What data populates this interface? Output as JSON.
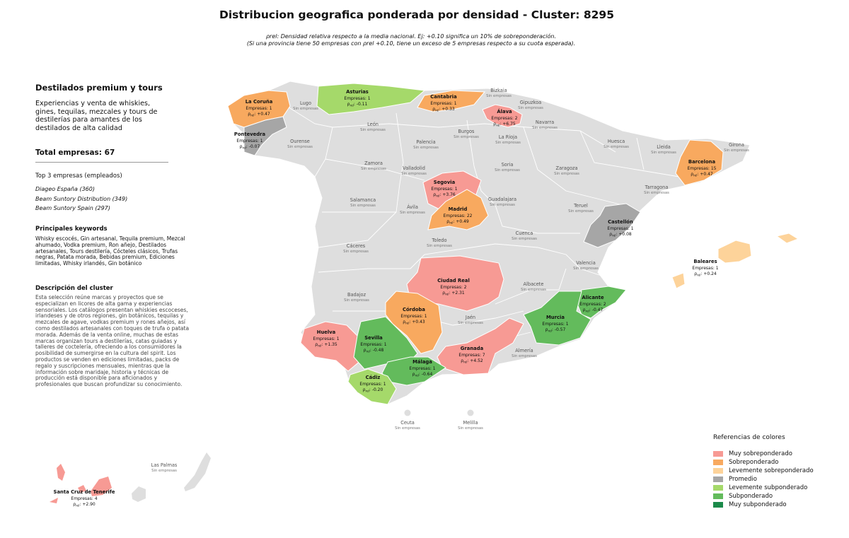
{
  "title": "Distribucion geografica ponderada por densidad - Cluster: 8295",
  "subtitle_line1": "ρrel: Densidad relativa respecto a la media nacional. Ej: +0.10 significa un 10% de sobreponderación.",
  "subtitle_line2": "(Si una provincia tiene 50 empresas con ρrel +0.10, tiene un exceso de 5 empresas respecto a su cuota esperada).",
  "panel": {
    "category_title": "Destilados premium y tours",
    "category_description": "Experiencias y venta de whiskies, gines, tequilas, mezcales y tours de destilerías para amantes de los destilados de alta calidad",
    "total_label": "Total empresas: 67",
    "top_heading": "Top 3 empresas (empleados)",
    "top_companies": [
      "Diageo España (360)",
      "Beam Suntory Distribution (349)",
      "Beam Suntory Spain (297)"
    ],
    "keywords_heading": "Principales keywords",
    "keywords_text": "Whisky escocés, Gin artesanal, Tequila premium, Mezcal ahumado, Vodka premium, Ron añejo, Destilados artesanales, Tours destilería, Cócteles clásicos, Trufas negras, Patata morada, Bebidas premium, Ediciones limitadas, Whisky irlandés, Gin botánico",
    "description_heading": "Descripción del cluster",
    "description_text": "Esta selección reúne marcas y proyectos que se especializan en licores de alta gama y experiencias sensoriales. Los catálogos presentan whiskies escoceses, irlandeses y de otros regiones, gin botánicos, tequilas y mezcales de agave, vodkas premium y rones añejos, así como destilados artesanales con toques de trufa o patata morada. Además de la venta online, muchas de estas marcas organizan tours a destilerías, catas guiadas y talleres de coctelería, ofreciendo a los consumidores la posibilidad de sumergirse en la cultura del spirit. Los productos se venden en ediciones limitadas, packs de regalo y suscripciones mensuales, mientras que la información sobre maridaje, historia y técnicas de producción está disponible para aficionados y profesionales que buscan profundizar su conocimiento."
  },
  "colors": {
    "muy_sobre": "#f79a94",
    "sobre": "#f8a95f",
    "leve_sobre": "#fdd39a",
    "promedio": "#a6a6a6",
    "leve_sub": "#a5d96a",
    "sub": "#63bb5c",
    "muy_sub": "#1c8a4a",
    "sin_empresas": "#dedede"
  },
  "legend": {
    "title": "Referencias de colores",
    "items": [
      {
        "label": "Muy sobreponderado",
        "color": "#f79a94"
      },
      {
        "label": "Sobreponderado",
        "color": "#f8a95f"
      },
      {
        "label": "Levemente sobreponderado",
        "color": "#fdd39a"
      },
      {
        "label": "Promedio",
        "color": "#a6a6a6"
      },
      {
        "label": "Levemente subponderado",
        "color": "#a5d96a"
      },
      {
        "label": "Subponderado",
        "color": "#63bb5c"
      },
      {
        "label": "Muy subponderado",
        "color": "#1c8a4a"
      }
    ]
  },
  "empty_label": "Sin empresas",
  "provinces_without_companies": [
    "Lugo",
    "Ourense",
    "León",
    "Palencia",
    "Burgos",
    "Bizkaia",
    "Gipuzkoa",
    "Navarra",
    "La Rioja",
    "Huesca",
    "Lleida",
    "Girona",
    "Zamora",
    "Valladolid",
    "Soria",
    "Zaragoza",
    "Tarragona",
    "Salamanca",
    "Ávila",
    "Guadalajara",
    "Teruel",
    "Cuenca",
    "Toledo",
    "Cáceres",
    "Valencia",
    "Badajoz",
    "Albacete",
    "Jaén",
    "Almería",
    "Ceuta",
    "Melilla",
    "Las Palmas"
  ],
  "provinces_with_companies": [
    {
      "name": "La Coruña",
      "empresas": "Empresas: 1",
      "rho": "+0.47",
      "class": "sobre"
    },
    {
      "name": "Asturias",
      "empresas": "Empresas: 1",
      "rho": "-0.11",
      "class": "leve_sub"
    },
    {
      "name": "Cantabria",
      "empresas": "Empresas: 1",
      "rho": "+0.33",
      "class": "sobre"
    },
    {
      "name": "Álava",
      "empresas": "Empresas: 2",
      "rho": "+6.75",
      "class": "muy_sobre"
    },
    {
      "name": "Pontevedra",
      "empresas": "Empresas: 1",
      "rho": "-0.07",
      "class": "promedio"
    },
    {
      "name": "Barcelona",
      "empresas": "Empresas: 15",
      "rho": "+0.47",
      "class": "sobre"
    },
    {
      "name": "Segovia",
      "empresas": "Empresas: 1",
      "rho": "+3.76",
      "class": "muy_sobre"
    },
    {
      "name": "Madrid",
      "empresas": "Empresas: 22",
      "rho": "+0.49",
      "class": "sobre"
    },
    {
      "name": "Castellón",
      "empresas": "Empresas: 1",
      "rho": "+0.08",
      "class": "promedio"
    },
    {
      "name": "Baleares",
      "empresas": "Empresas: 1",
      "rho": "+0.24",
      "class": "leve_sobre"
    },
    {
      "name": "Ciudad Real",
      "empresas": "Empresas: 2",
      "rho": "+2.31",
      "class": "muy_sobre"
    },
    {
      "name": "Alicante",
      "empresas": "Empresas: 2",
      "rho": "-0.47",
      "class": "sub"
    },
    {
      "name": "Córdoba",
      "empresas": "Empresas: 1",
      "rho": "+0.43",
      "class": "sobre"
    },
    {
      "name": "Murcia",
      "empresas": "Empresas: 1",
      "rho": "-0.57",
      "class": "sub"
    },
    {
      "name": "Huelva",
      "empresas": "Empresas: 1",
      "rho": "+1.35",
      "class": "muy_sobre"
    },
    {
      "name": "Sevilla",
      "empresas": "Empresas: 1",
      "rho": "-0.48",
      "class": "sub"
    },
    {
      "name": "Granada",
      "empresas": "Empresas: 7",
      "rho": "+4.52",
      "class": "muy_sobre"
    },
    {
      "name": "Málaga",
      "empresas": "Empresas: 1",
      "rho": "-0.64",
      "class": "sub"
    },
    {
      "name": "Cádiz",
      "empresas": "Empresas: 1",
      "rho": "-0.20",
      "class": "leve_sub"
    },
    {
      "name": "Santa Cruz de Tenerife",
      "empresas": "Empresas: 4",
      "rho": "+2.90",
      "class": "muy_sobre"
    }
  ]
}
